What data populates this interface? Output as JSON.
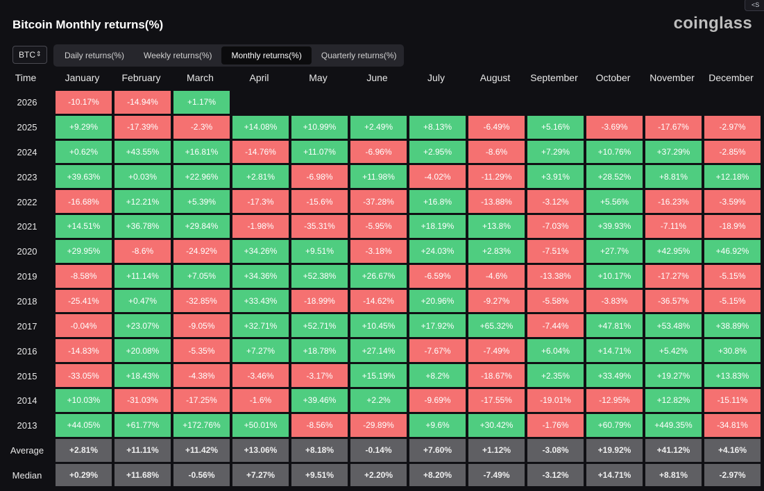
{
  "header": {
    "title": "Bitcoin Monthly returns(%)",
    "brand": "coinglass",
    "share_icon": "share-icon",
    "share_label": "S"
  },
  "coin_select": {
    "value": "BTC",
    "chevron": "⌃⌄"
  },
  "tabs": [
    {
      "label": "Daily returns(%)",
      "active": false
    },
    {
      "label": "Weekly returns(%)",
      "active": false
    },
    {
      "label": "Monthly returns(%)",
      "active": true
    },
    {
      "label": "Quarterly returns(%)",
      "active": false
    }
  ],
  "colors": {
    "positive": "#4fcd80",
    "negative": "#f57171",
    "stat": "#5f5f63",
    "background": "#101014"
  },
  "table": {
    "headers": [
      "Time",
      "January",
      "February",
      "March",
      "April",
      "May",
      "June",
      "July",
      "August",
      "September",
      "October",
      "November",
      "December"
    ],
    "rows": [
      {
        "label": "2026",
        "type": "year",
        "values": [
          "-10.17%",
          "-14.94%",
          "+1.17%",
          "",
          "",
          "",
          "",
          "",
          "",
          "",
          "",
          ""
        ]
      },
      {
        "label": "2025",
        "type": "year",
        "values": [
          "+9.29%",
          "-17.39%",
          "-2.3%",
          "+14.08%",
          "+10.99%",
          "+2.49%",
          "+8.13%",
          "-6.49%",
          "+5.16%",
          "-3.69%",
          "-17.67%",
          "-2.97%"
        ]
      },
      {
        "label": "2024",
        "type": "year",
        "values": [
          "+0.62%",
          "+43.55%",
          "+16.81%",
          "-14.76%",
          "+11.07%",
          "-6.96%",
          "+2.95%",
          "-8.6%",
          "+7.29%",
          "+10.76%",
          "+37.29%",
          "-2.85%"
        ]
      },
      {
        "label": "2023",
        "type": "year",
        "values": [
          "+39.63%",
          "+0.03%",
          "+22.96%",
          "+2.81%",
          "-6.98%",
          "+11.98%",
          "-4.02%",
          "-11.29%",
          "+3.91%",
          "+28.52%",
          "+8.81%",
          "+12.18%"
        ]
      },
      {
        "label": "2022",
        "type": "year",
        "values": [
          "-16.68%",
          "+12.21%",
          "+5.39%",
          "-17.3%",
          "-15.6%",
          "-37.28%",
          "+16.8%",
          "-13.88%",
          "-3.12%",
          "+5.56%",
          "-16.23%",
          "-3.59%"
        ]
      },
      {
        "label": "2021",
        "type": "year",
        "values": [
          "+14.51%",
          "+36.78%",
          "+29.84%",
          "-1.98%",
          "-35.31%",
          "-5.95%",
          "+18.19%",
          "+13.8%",
          "-7.03%",
          "+39.93%",
          "-7.11%",
          "-18.9%"
        ]
      },
      {
        "label": "2020",
        "type": "year",
        "values": [
          "+29.95%",
          "-8.6%",
          "-24.92%",
          "+34.26%",
          "+9.51%",
          "-3.18%",
          "+24.03%",
          "+2.83%",
          "-7.51%",
          "+27.7%",
          "+42.95%",
          "+46.92%"
        ]
      },
      {
        "label": "2019",
        "type": "year",
        "values": [
          "-8.58%",
          "+11.14%",
          "+7.05%",
          "+34.36%",
          "+52.38%",
          "+26.67%",
          "-6.59%",
          "-4.6%",
          "-13.38%",
          "+10.17%",
          "-17.27%",
          "-5.15%"
        ]
      },
      {
        "label": "2018",
        "type": "year",
        "values": [
          "-25.41%",
          "+0.47%",
          "-32.85%",
          "+33.43%",
          "-18.99%",
          "-14.62%",
          "+20.96%",
          "-9.27%",
          "-5.58%",
          "-3.83%",
          "-36.57%",
          "-5.15%"
        ]
      },
      {
        "label": "2017",
        "type": "year",
        "values": [
          "-0.04%",
          "+23.07%",
          "-9.05%",
          "+32.71%",
          "+52.71%",
          "+10.45%",
          "+17.92%",
          "+65.32%",
          "-7.44%",
          "+47.81%",
          "+53.48%",
          "+38.89%"
        ]
      },
      {
        "label": "2016",
        "type": "year",
        "values": [
          "-14.83%",
          "+20.08%",
          "-5.35%",
          "+7.27%",
          "+18.78%",
          "+27.14%",
          "-7.67%",
          "-7.49%",
          "+6.04%",
          "+14.71%",
          "+5.42%",
          "+30.8%"
        ]
      },
      {
        "label": "2015",
        "type": "year",
        "values": [
          "-33.05%",
          "+18.43%",
          "-4.38%",
          "-3.46%",
          "-3.17%",
          "+15.19%",
          "+8.2%",
          "-18.67%",
          "+2.35%",
          "+33.49%",
          "+19.27%",
          "+13.83%"
        ]
      },
      {
        "label": "2014",
        "type": "year",
        "values": [
          "+10.03%",
          "-31.03%",
          "-17.25%",
          "-1.6%",
          "+39.46%",
          "+2.2%",
          "-9.69%",
          "-17.55%",
          "-19.01%",
          "-12.95%",
          "+12.82%",
          "-15.11%"
        ]
      },
      {
        "label": "2013",
        "type": "year",
        "values": [
          "+44.05%",
          "+61.77%",
          "+172.76%",
          "+50.01%",
          "-8.56%",
          "-29.89%",
          "+9.6%",
          "+30.42%",
          "-1.76%",
          "+60.79%",
          "+449.35%",
          "-34.81%"
        ]
      },
      {
        "label": "Average",
        "type": "stat",
        "values": [
          "+2.81%",
          "+11.11%",
          "+11.42%",
          "+13.06%",
          "+8.18%",
          "-0.14%",
          "+7.60%",
          "+1.12%",
          "-3.08%",
          "+19.92%",
          "+41.12%",
          "+4.16%"
        ]
      },
      {
        "label": "Median",
        "type": "stat",
        "values": [
          "+0.29%",
          "+11.68%",
          "-0.56%",
          "+7.27%",
          "+9.51%",
          "+2.20%",
          "+8.20%",
          "-7.49%",
          "-3.12%",
          "+14.71%",
          "+8.81%",
          "-2.97%"
        ]
      }
    ]
  }
}
